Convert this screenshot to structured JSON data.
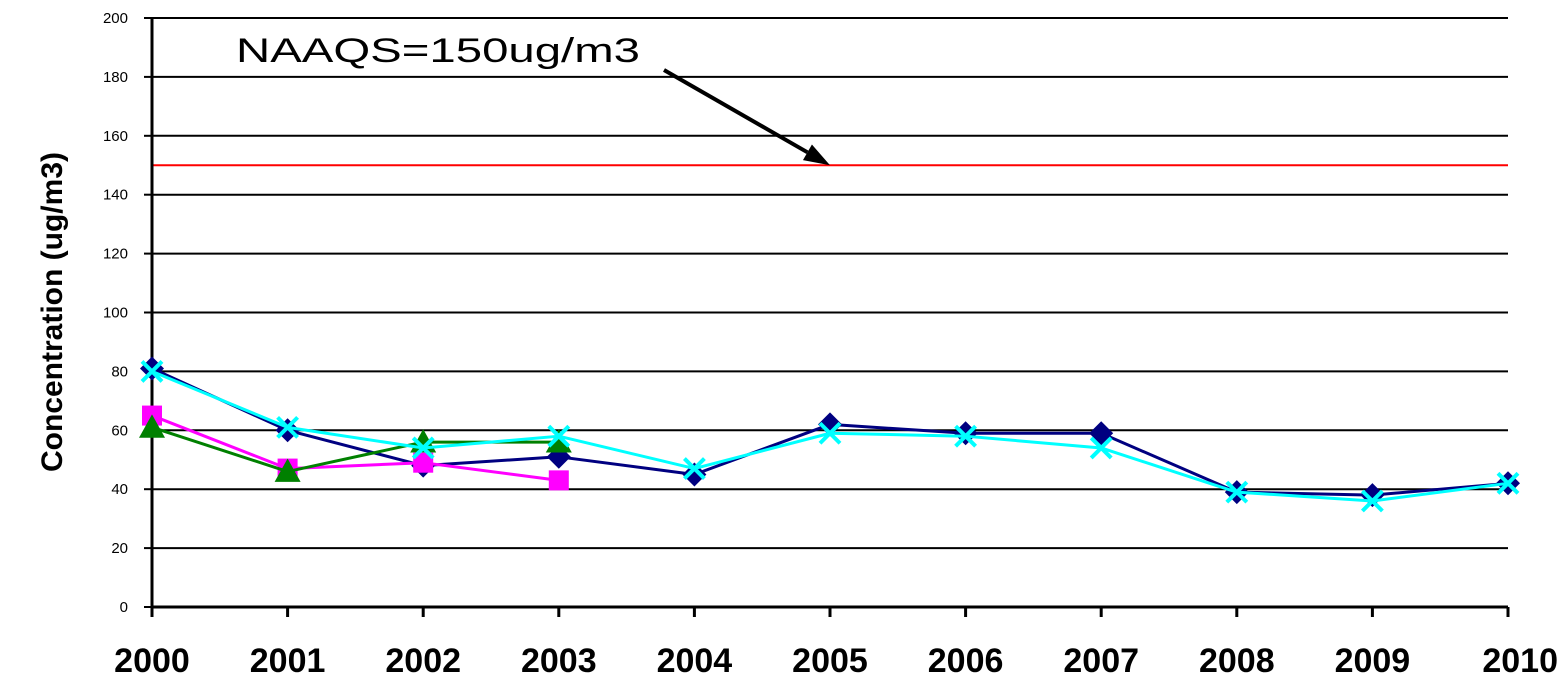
{
  "chart_data": {
    "type": "line",
    "title": "",
    "xlabel": "",
    "ylabel": "Concentration (ug/m3)",
    "categories": [
      "2000",
      "2001",
      "2002",
      "2003",
      "2004",
      "2005",
      "2006",
      "2007",
      "2008",
      "2009",
      "2010"
    ],
    "ylim": [
      0,
      200
    ],
    "yticks": [
      0,
      20,
      40,
      60,
      80,
      100,
      120,
      140,
      160,
      180,
      200
    ],
    "grid": true,
    "legend": "none",
    "reference_line": {
      "value": 150,
      "color": "#ff0000"
    },
    "annotation": {
      "text": "NAAQS=150ug/m3",
      "points_to_category": "2005",
      "points_to_value": 150
    },
    "series": [
      {
        "marker": "diamond",
        "color": "#000080",
        "values": [
          81,
          60,
          48,
          51,
          45,
          62,
          59,
          59,
          39,
          38,
          42
        ]
      },
      {
        "marker": "square",
        "color": "#ff00ff",
        "values": [
          65,
          47,
          49,
          43,
          null,
          null,
          null,
          null,
          null,
          null,
          null
        ]
      },
      {
        "marker": "triangle",
        "color": "#008000",
        "values": [
          61,
          46,
          56,
          56,
          null,
          null,
          null,
          null,
          null,
          null,
          null
        ]
      },
      {
        "marker": "x",
        "color": "#00ffff",
        "values": [
          80,
          61,
          54,
          58,
          47,
          59,
          58,
          54,
          39,
          36,
          42
        ]
      }
    ]
  }
}
